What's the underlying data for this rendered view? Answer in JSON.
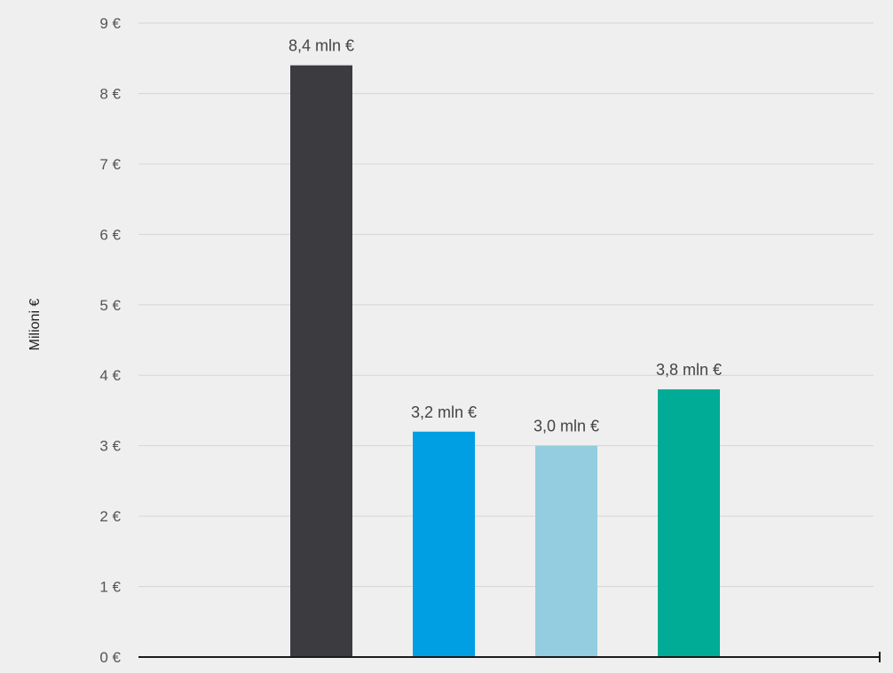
{
  "chart_data": {
    "type": "bar",
    "title": "",
    "xlabel": "",
    "ylabel": "Milioni €",
    "ylim": [
      0,
      9
    ],
    "yticks": [
      0,
      1,
      2,
      3,
      4,
      5,
      6,
      7,
      8,
      9
    ],
    "ytick_labels": [
      "0 €",
      "1 €",
      "2 €",
      "3 €",
      "4 €",
      "5 €",
      "6 €",
      "7 €",
      "8 €",
      "9 €"
    ],
    "grid": true,
    "legend": "none",
    "categories": [
      "",
      "",
      "",
      ""
    ],
    "values": [
      8.4,
      3.2,
      3.0,
      3.8
    ],
    "data_labels": [
      "8,4 mln €",
      "3,2 mln €",
      "3,0 mln €",
      "3,8 mln €"
    ],
    "colors": [
      "#3c3b40",
      "#009fe3",
      "#94cddf",
      "#00ac96"
    ]
  }
}
